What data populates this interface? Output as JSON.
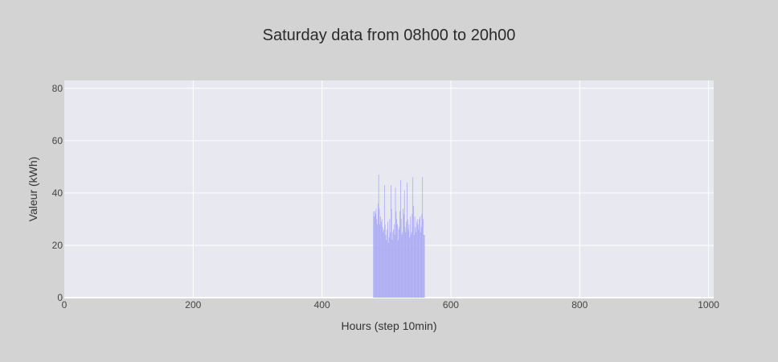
{
  "chart_data": {
    "type": "bar",
    "title": "Saturday data from 08h00 to 20h00",
    "xlabel": "Hours (step 10min)",
    "ylabel": "Valeur (kWh)",
    "xlim": [
      0,
      1008
    ],
    "ylim": [
      0,
      83
    ],
    "x_ticks": [
      0,
      200,
      400,
      600,
      800,
      1000
    ],
    "y_ticks": [
      0,
      20,
      40,
      60,
      80
    ],
    "grid": true,
    "legend": "none",
    "colors": {
      "bar": "#a9a9f5",
      "plot_bg": "#e8e8f0",
      "paper_bg": "#d3d3d3",
      "grid": "#ffffff"
    },
    "series": [
      {
        "x": [
          480,
          481,
          482,
          483,
          484,
          485,
          486,
          487,
          488,
          489,
          490,
          491,
          492,
          493,
          494,
          495,
          496,
          497,
          498,
          499,
          500,
          501,
          502,
          503,
          504,
          505,
          506,
          507,
          508,
          509,
          510,
          511,
          512,
          513,
          514,
          515,
          516,
          517,
          518,
          519,
          520,
          521,
          522,
          523,
          524,
          525,
          526,
          527,
          528,
          529,
          530,
          531,
          532,
          533,
          534,
          535,
          536,
          537,
          538,
          539,
          540,
          541,
          542,
          543,
          544,
          545,
          546,
          547,
          548,
          549,
          550,
          551,
          552,
          553,
          554,
          555,
          556,
          557,
          558,
          559
        ],
        "y": [
          33,
          31,
          33,
          32,
          34,
          30,
          28,
          36,
          47,
          34,
          28,
          31,
          29,
          30,
          27,
          25,
          26,
          43,
          28,
          24,
          22,
          26,
          29,
          21,
          23,
          30,
          25,
          43,
          34,
          22,
          25,
          26,
          28,
          24,
          42,
          33,
          30,
          28,
          22,
          26,
          27,
          33,
          45,
          30,
          24,
          25,
          34,
          32,
          41,
          27,
          25,
          29,
          44,
          30,
          26,
          28,
          23,
          31,
          24,
          25,
          32,
          46,
          35,
          24,
          31,
          27,
          25,
          29,
          30,
          28,
          26,
          30,
          31,
          25,
          27,
          32,
          46,
          30,
          24,
          24
        ]
      }
    ]
  }
}
